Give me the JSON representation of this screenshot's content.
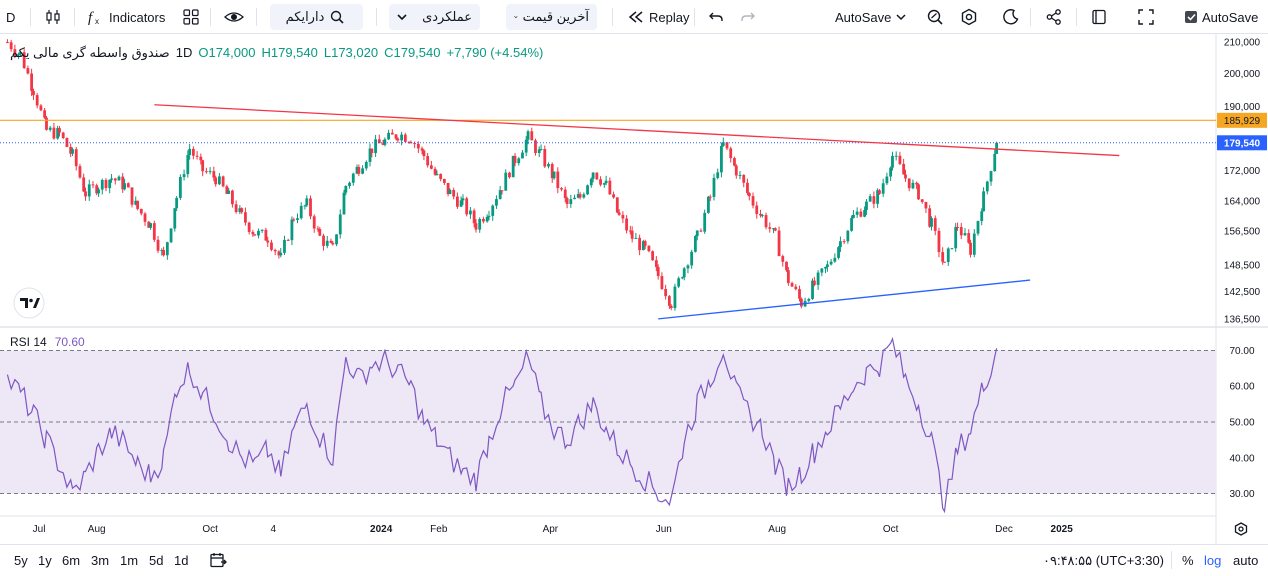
{
  "toolbar": {
    "symbol": "D",
    "indicators_label": "Indicators",
    "search_symbol": "دارایکم",
    "chart_type_label": "عملکردی",
    "price_source_label": "آخرین قیمت",
    "replay_label": "Replay",
    "autosave_label": "AutoSave",
    "autosave_check_label": "AutoSave"
  },
  "legend": {
    "name": "صندوق واسطه گری مالی یکم",
    "interval": "1D",
    "open": "O174,000",
    "high": "H179,540",
    "low": "L173,020",
    "close": "C179,540",
    "change": "+7,790 (+4.54%)"
  },
  "rsi": {
    "label": "RSI 14",
    "value": "70.60"
  },
  "price_axis": {
    "ticks": [
      "210,000",
      "200,000",
      "190,000",
      "172,000",
      "164,000",
      "156,500",
      "148,500",
      "142,500",
      "136,500"
    ],
    "badge_orange": "185,929",
    "badge_blue": "179,540"
  },
  "rsi_axis": {
    "ticks": [
      "70.00",
      "60.00",
      "50.00",
      "40.00",
      "30.00"
    ]
  },
  "time_axis": {
    "ticks": [
      "Jul",
      "Aug",
      "Oct",
      "4",
      "2024",
      "Feb",
      "Apr",
      "Jun",
      "Aug",
      "Oct",
      "Dec",
      "2025"
    ]
  },
  "bottombar": {
    "ranges": [
      "5y",
      "1y",
      "6m",
      "3m",
      "1m",
      "5d",
      "1d"
    ],
    "clock": "۰۹:۴۸:۵۵ (UTC+3:30)",
    "percent": "%",
    "log": "log",
    "auto": "auto"
  },
  "colors": {
    "up": "#089981",
    "down": "#f23645",
    "rsi_line": "#7e57c2",
    "rsi_band": "#ede7f6",
    "resistance": "#f23645",
    "support": "#2962ff",
    "orange_line": "#f5a623"
  },
  "chart_data": {
    "type": "candlestick",
    "price_axis_range": [
      135000,
      212000
    ],
    "price_series": [
      [
        "2023-06-14",
        210000
      ],
      [
        "2023-06-21",
        206000
      ],
      [
        "2023-06-28",
        195000
      ],
      [
        "2023-07-05",
        183000
      ],
      [
        "2023-07-12",
        182000
      ],
      [
        "2023-07-19",
        176000
      ],
      [
        "2023-07-26",
        166000
      ],
      [
        "2023-08-02",
        168000
      ],
      [
        "2023-08-09",
        170000
      ],
      [
        "2023-08-16",
        168000
      ],
      [
        "2023-08-23",
        162000
      ],
      [
        "2023-08-30",
        158000
      ],
      [
        "2023-09-06",
        150000
      ],
      [
        "2023-09-13",
        165000
      ],
      [
        "2023-09-20",
        178000
      ],
      [
        "2023-09-27",
        172000
      ],
      [
        "2023-10-04",
        170000
      ],
      [
        "2023-10-11",
        165000
      ],
      [
        "2023-10-18",
        160000
      ],
      [
        "2023-10-25",
        156000
      ],
      [
        "2023-11-01",
        155000
      ],
      [
        "2023-11-08",
        150000
      ],
      [
        "2023-11-15",
        160000
      ],
      [
        "2023-11-22",
        163000
      ],
      [
        "2023-11-29",
        155000
      ],
      [
        "2023-12-06",
        152000
      ],
      [
        "2023-12-13",
        168000
      ],
      [
        "2023-12-20",
        173000
      ],
      [
        "2023-12-27",
        178000
      ],
      [
        "2024-01-03",
        180000
      ],
      [
        "2024-01-10",
        182000
      ],
      [
        "2024-01-17",
        181000
      ],
      [
        "2024-01-24",
        176000
      ],
      [
        "2024-01-31",
        170000
      ],
      [
        "2024-02-07",
        166000
      ],
      [
        "2024-02-14",
        163000
      ],
      [
        "2024-02-21",
        158000
      ],
      [
        "2024-02-28",
        162000
      ],
      [
        "2024-03-06",
        168000
      ],
      [
        "2024-03-13",
        175000
      ],
      [
        "2024-03-20",
        181000
      ],
      [
        "2024-03-27",
        176000
      ],
      [
        "2024-04-03",
        170000
      ],
      [
        "2024-04-10",
        163000
      ],
      [
        "2024-04-17",
        165000
      ],
      [
        "2024-04-24",
        172000
      ],
      [
        "2024-05-01",
        168000
      ],
      [
        "2024-05-08",
        160000
      ],
      [
        "2024-05-15",
        155000
      ],
      [
        "2024-05-22",
        152000
      ],
      [
        "2024-05-29",
        146000
      ],
      [
        "2024-06-05",
        140000
      ],
      [
        "2024-06-12",
        148000
      ],
      [
        "2024-06-19",
        155000
      ],
      [
        "2024-06-26",
        165000
      ],
      [
        "2024-07-03",
        179000
      ],
      [
        "2024-07-10",
        172000
      ],
      [
        "2024-07-17",
        165000
      ],
      [
        "2024-07-24",
        160000
      ],
      [
        "2024-07-31",
        155000
      ],
      [
        "2024-08-07",
        145000
      ],
      [
        "2024-08-14",
        140000
      ],
      [
        "2024-08-21",
        144000
      ],
      [
        "2024-08-28",
        148000
      ],
      [
        "2024-09-04",
        154000
      ],
      [
        "2024-09-11",
        160000
      ],
      [
        "2024-09-18",
        163000
      ],
      [
        "2024-09-25",
        166000
      ],
      [
        "2024-10-02",
        176000
      ],
      [
        "2024-10-09",
        170000
      ],
      [
        "2024-10-16",
        166000
      ],
      [
        "2024-10-23",
        158000
      ],
      [
        "2024-10-30",
        148000
      ],
      [
        "2024-11-06",
        158000
      ],
      [
        "2024-11-13",
        152000
      ],
      [
        "2024-11-20",
        165000
      ],
      [
        "2024-11-27",
        179540
      ]
    ],
    "rsi_axis_range": [
      24,
      76
    ],
    "rsi_series": [
      [
        "2023-06-14",
        62
      ],
      [
        "2023-06-21",
        58
      ],
      [
        "2023-06-28",
        52
      ],
      [
        "2023-07-05",
        45
      ],
      [
        "2023-07-12",
        38
      ],
      [
        "2023-07-19",
        30
      ],
      [
        "2023-07-26",
        35
      ],
      [
        "2023-08-02",
        42
      ],
      [
        "2023-08-09",
        47
      ],
      [
        "2023-08-16",
        44
      ],
      [
        "2023-08-23",
        38
      ],
      [
        "2023-08-30",
        35
      ],
      [
        "2023-09-06",
        40
      ],
      [
        "2023-09-13",
        60
      ],
      [
        "2023-09-20",
        65
      ],
      [
        "2023-09-27",
        58
      ],
      [
        "2023-10-04",
        52
      ],
      [
        "2023-10-11",
        45
      ],
      [
        "2023-10-18",
        40
      ],
      [
        "2023-10-25",
        38
      ],
      [
        "2023-11-01",
        42
      ],
      [
        "2023-11-08",
        35
      ],
      [
        "2023-11-15",
        48
      ],
      [
        "2023-11-22",
        55
      ],
      [
        "2023-11-29",
        46
      ],
      [
        "2023-12-06",
        40
      ],
      [
        "2023-12-13",
        68
      ],
      [
        "2023-12-20",
        62
      ],
      [
        "2023-12-27",
        66
      ],
      [
        "2024-01-03",
        67
      ],
      [
        "2024-01-10",
        64
      ],
      [
        "2024-01-17",
        60
      ],
      [
        "2024-01-24",
        50
      ],
      [
        "2024-01-31",
        45
      ],
      [
        "2024-02-07",
        40
      ],
      [
        "2024-02-14",
        36
      ],
      [
        "2024-02-21",
        34
      ],
      [
        "2024-02-28",
        45
      ],
      [
        "2024-03-06",
        55
      ],
      [
        "2024-03-13",
        60
      ],
      [
        "2024-03-20",
        68
      ],
      [
        "2024-03-27",
        55
      ],
      [
        "2024-04-03",
        48
      ],
      [
        "2024-04-10",
        45
      ],
      [
        "2024-04-17",
        50
      ],
      [
        "2024-04-24",
        55
      ],
      [
        "2024-05-01",
        48
      ],
      [
        "2024-05-08",
        42
      ],
      [
        "2024-05-15",
        38
      ],
      [
        "2024-05-22",
        34
      ],
      [
        "2024-05-29",
        30
      ],
      [
        "2024-06-05",
        28
      ],
      [
        "2024-06-12",
        45
      ],
      [
        "2024-06-19",
        55
      ],
      [
        "2024-06-26",
        62
      ],
      [
        "2024-07-03",
        71
      ],
      [
        "2024-07-10",
        58
      ],
      [
        "2024-07-17",
        52
      ],
      [
        "2024-07-24",
        48
      ],
      [
        "2024-07-31",
        38
      ],
      [
        "2024-08-07",
        32
      ],
      [
        "2024-08-14",
        36
      ],
      [
        "2024-08-21",
        42
      ],
      [
        "2024-08-28",
        48
      ],
      [
        "2024-09-04",
        54
      ],
      [
        "2024-09-11",
        60
      ],
      [
        "2024-09-18",
        64
      ],
      [
        "2024-09-25",
        66
      ],
      [
        "2024-10-02",
        72
      ],
      [
        "2024-10-09",
        62
      ],
      [
        "2024-10-16",
        55
      ],
      [
        "2024-10-23",
        45
      ],
      [
        "2024-10-30",
        26
      ],
      [
        "2024-11-06",
        42
      ],
      [
        "2024-11-13",
        48
      ],
      [
        "2024-11-20",
        60
      ],
      [
        "2024-11-27",
        70.6
      ]
    ],
    "resistance_line": [
      [
        "2023-09-01",
        190500
      ],
      [
        "2025-02-01",
        176000
      ]
    ],
    "support_line": [
      [
        "2024-05-29",
        136500
      ],
      [
        "2024-12-15",
        145000
      ]
    ],
    "horizontal_level": 185929,
    "last_price": 179540,
    "rsi_levels": [
      70,
      50,
      30
    ],
    "grid": true
  }
}
